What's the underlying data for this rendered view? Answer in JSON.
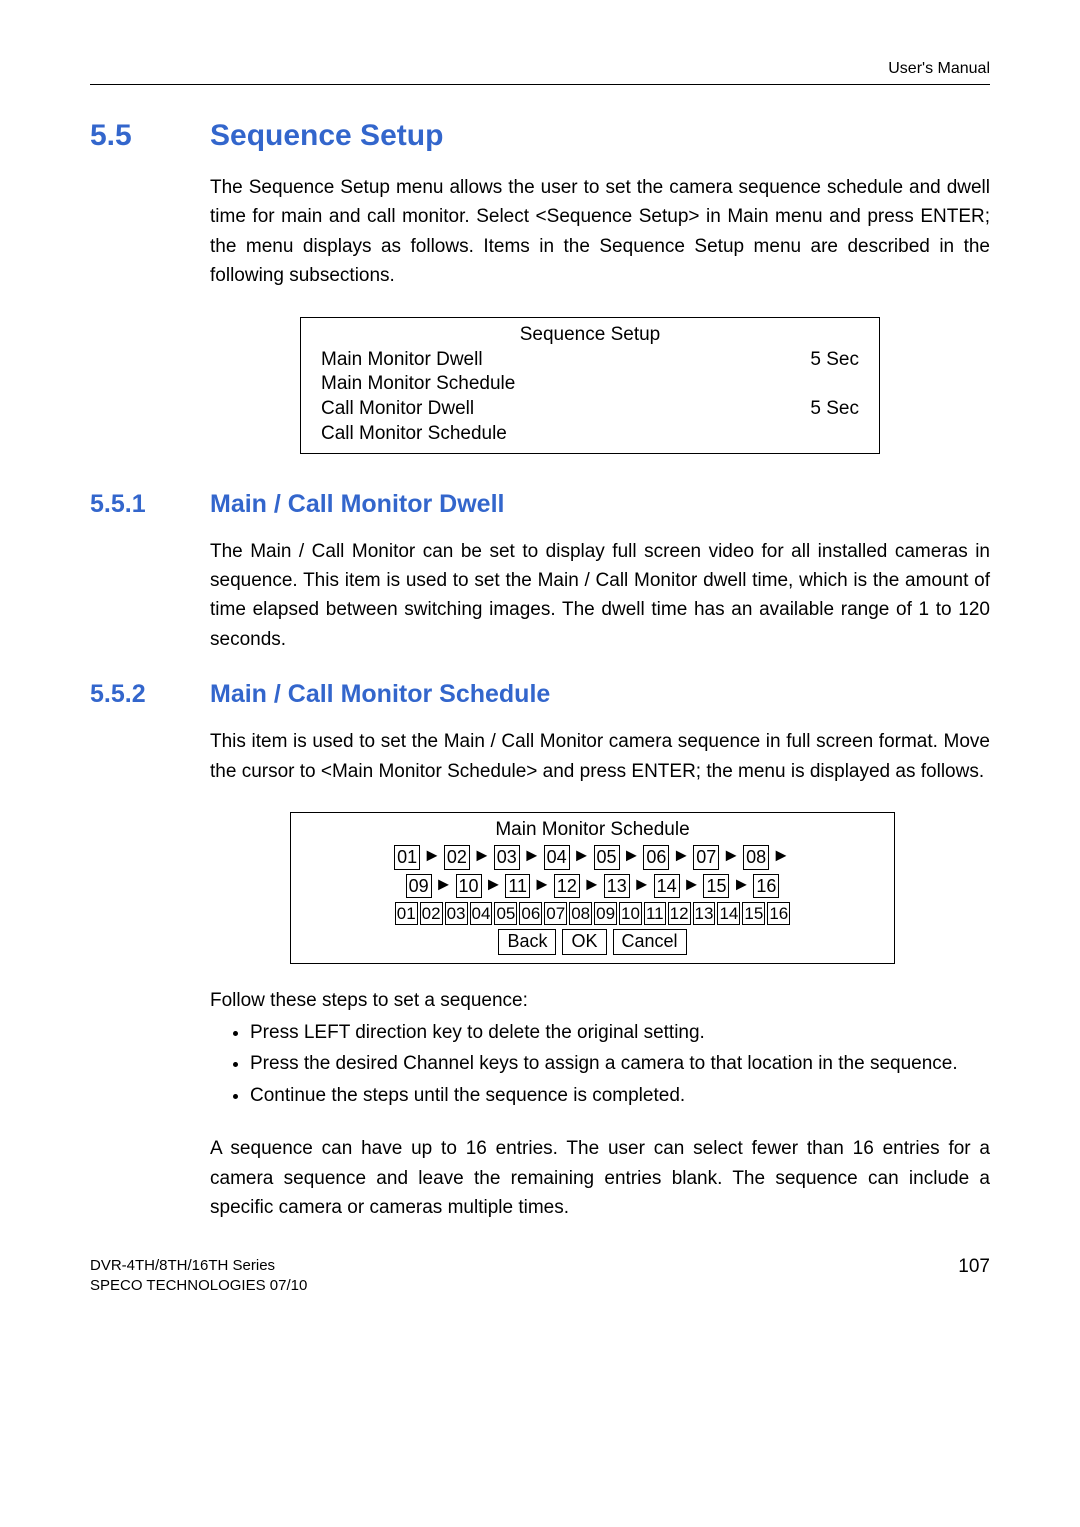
{
  "header": {
    "right": "User's Manual"
  },
  "section": {
    "num": "5.5",
    "title": "Sequence Setup",
    "para": "The Sequence Setup menu allows the user to set the camera sequence schedule and dwell time for main and call monitor. Select <Sequence Setup> in Main menu and press ENTER; the menu displays as follows. Items in the Sequence Setup menu are described in the following subsections."
  },
  "seq_box": {
    "title": "Sequence Setup",
    "rows": [
      {
        "label": "Main Monitor Dwell",
        "value": "5 Sec"
      },
      {
        "label": "Main Monitor Schedule",
        "value": ""
      },
      {
        "label": "Call Monitor Dwell",
        "value": "5 Sec"
      },
      {
        "label": "Call Monitor Schedule",
        "value": ""
      }
    ]
  },
  "sub1": {
    "num": "5.5.1",
    "title": "Main / Call Monitor Dwell",
    "para": "The Main / Call Monitor can be set to display full screen video for all installed cameras in sequence. This item is used to set the Main / Call Monitor dwell time, which is the amount of time elapsed between switching images. The dwell time has an available range of 1 to 120 seconds."
  },
  "sub2": {
    "num": "5.5.2",
    "title": "Main / Call Monitor Schedule",
    "para": "This item is used to set the Main / Call Monitor camera sequence in full screen format. Move the cursor to <Main Monitor Schedule> and press ENTER; the menu is displayed as follows."
  },
  "sched_box": {
    "title": "Main Monitor Schedule",
    "row1": [
      "01",
      "02",
      "03",
      "04",
      "05",
      "06",
      "07",
      "08"
    ],
    "row2": [
      "09",
      "10",
      "11",
      "12",
      "13",
      "14",
      "15",
      "16"
    ],
    "row3": [
      "01",
      "02",
      "03",
      "04",
      "05",
      "06",
      "07",
      "08",
      "09",
      "10",
      "11",
      "12",
      "13",
      "14",
      "15",
      "16"
    ],
    "buttons": [
      "Back",
      "OK",
      "Cancel"
    ],
    "arrow": "►"
  },
  "steps": {
    "intro": "Follow these steps to set a sequence:",
    "items": [
      "Press LEFT direction key to delete the original setting.",
      "Press the desired Channel keys to assign a camera to that location in the sequence.",
      "Continue the steps until the sequence is completed."
    ],
    "closing": "A sequence can have up to 16 entries. The user can select fewer than 16 entries for a camera sequence and leave the remaining entries blank. The sequence can include a specific camera or cameras multiple times."
  },
  "footer": {
    "line1": "DVR-4TH/8TH/16TH Series",
    "line2": "SPECO TECHNOLOGIES 07/10",
    "page": "107"
  }
}
